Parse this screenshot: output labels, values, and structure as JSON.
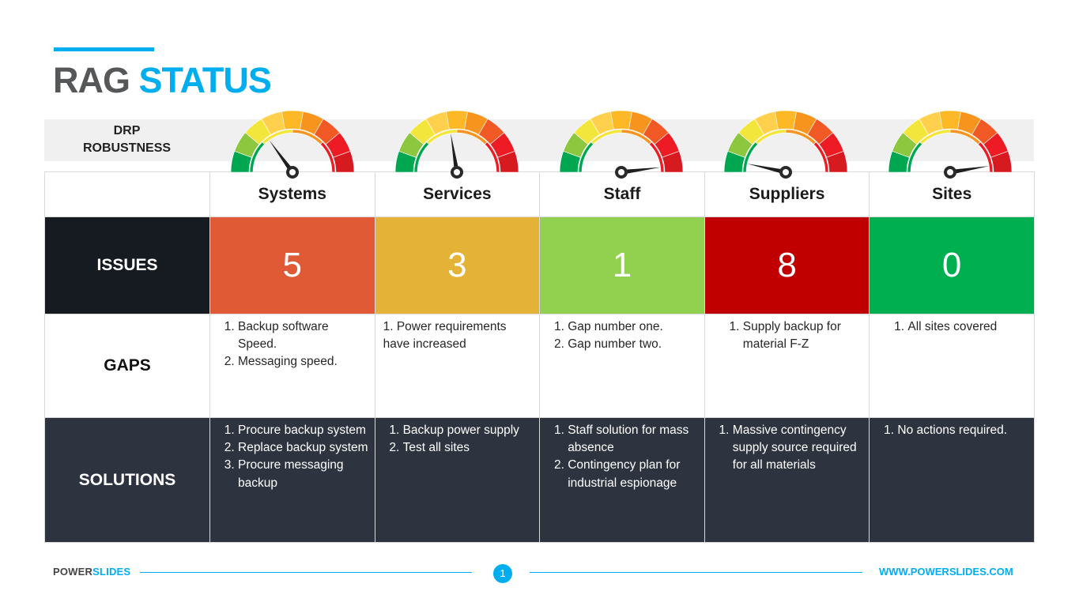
{
  "title": {
    "word1": "RAG",
    "word2": "STATUS"
  },
  "header_label": "DRP\nROBUSTNESS",
  "columns": [
    {
      "name": "Systems",
      "issues": "5",
      "color": "#e05a35",
      "gauge_level": 0.3,
      "gaps": {
        "style": "ol",
        "items": [
          "Backup software Speed.",
          "Messaging speed."
        ]
      },
      "solutions": {
        "style": "ol",
        "items": [
          "Procure backup system",
          "Replace backup system",
          "Procure messaging backup"
        ]
      }
    },
    {
      "name": "Services",
      "issues": "3",
      "color": "#e5b238",
      "gauge_level": 0.45,
      "gaps": {
        "style": "plain",
        "text": "1. Power requirements have increased"
      },
      "solutions": {
        "style": "ol",
        "items": [
          "Backup power supply",
          "Test all sites"
        ]
      }
    },
    {
      "name": "Staff",
      "issues": "1",
      "color": "#92d050",
      "gauge_level": 0.96,
      "gaps": {
        "style": "ol",
        "items": [
          "Gap number one.",
          "Gap number two."
        ]
      },
      "solutions": {
        "style": "ol",
        "items": [
          "Staff solution for mass absence",
          "Contingency plan for industrial espionage"
        ]
      }
    },
    {
      "name": "Suppliers",
      "issues": "8",
      "color": "#c00000",
      "gauge_level": 0.07,
      "gaps": {
        "style": "ol-wide",
        "items": [
          "Supply backup for material F-Z"
        ]
      },
      "solutions": {
        "style": "ol",
        "items": [
          "Massive contingency supply source required for all materials"
        ]
      }
    },
    {
      "name": "Sites",
      "issues": "0",
      "color": "#00b050",
      "gauge_level": 0.95,
      "gaps": {
        "style": "ol-wide",
        "items": [
          "All sites covered"
        ]
      },
      "solutions": {
        "style": "ol",
        "items": [
          "No actions required."
        ]
      }
    }
  ],
  "row_labels": {
    "issues": "ISSUES",
    "gaps": "GAPS",
    "solutions": "SOLUTIONS"
  },
  "gauge_colors": [
    "#00a650",
    "#8dc63f",
    "#f2e63c",
    "#ffd04c",
    "#fdb827",
    "#f7941d",
    "#f15a24",
    "#ed1c24",
    "#d71920"
  ],
  "footer": {
    "brand1": "POWER",
    "brand2": "SLIDES",
    "page": "1",
    "url": "WWW.POWERSLIDES.COM"
  }
}
